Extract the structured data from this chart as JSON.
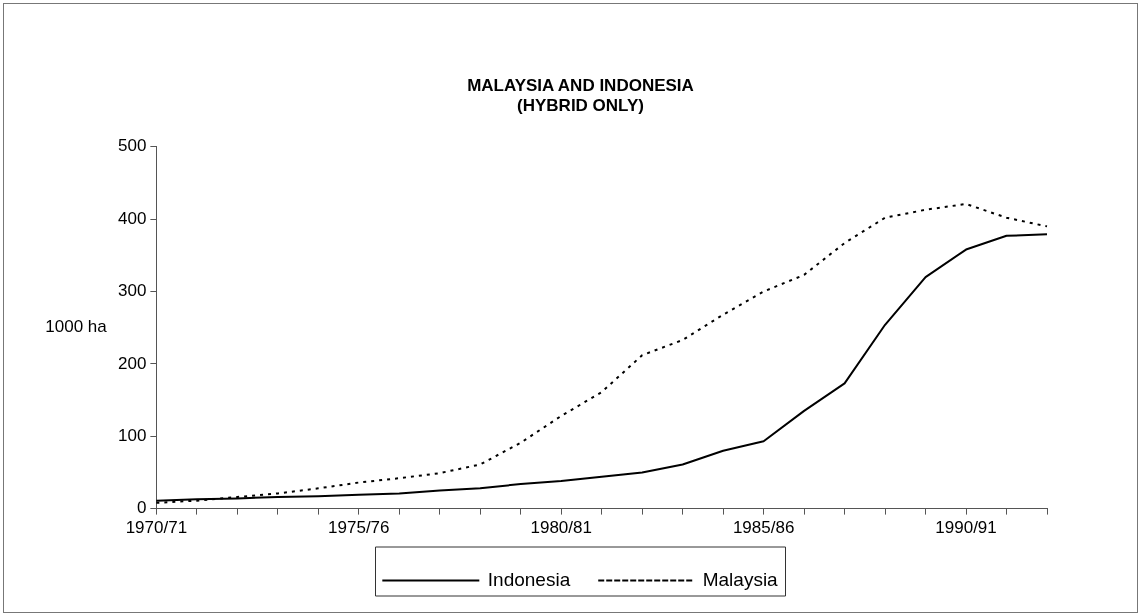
{
  "chart_data": {
    "type": "line",
    "title": "MALAYSIA AND INDONESIA\n(HYBRID ONLY)",
    "ylabel": "1000 ha",
    "categories": [
      "1970/71",
      null,
      null,
      null,
      null,
      "1975/76",
      null,
      null,
      null,
      null,
      "1980/81",
      null,
      null,
      null,
      null,
      "1985/86",
      null,
      null,
      null,
      null,
      "1990/91",
      null,
      null
    ],
    "series": [
      {
        "name": "Indonesia",
        "color": "#000000",
        "line_style": "solid",
        "values": [
          11,
          13,
          14,
          16,
          17,
          19,
          21,
          25,
          28,
          34,
          38,
          44,
          50,
          61,
          80,
          93,
          135,
          173,
          254,
          320,
          358,
          377,
          379
        ]
      },
      {
        "name": "Malaysia",
        "color": "#000000",
        "line_style": "dotted",
        "values": [
          8,
          11,
          16,
          21,
          28,
          36,
          42,
          49,
          61,
          91,
          128,
          161,
          212,
          233,
          268,
          300,
          323,
          367,
          402,
          413,
          421,
          402,
          390
        ]
      }
    ],
    "ylim": [
      0,
      500
    ],
    "yticks": [
      0,
      100,
      200,
      300,
      400,
      500
    ],
    "grid": false,
    "legend": "bottom",
    "marker": "none"
  }
}
